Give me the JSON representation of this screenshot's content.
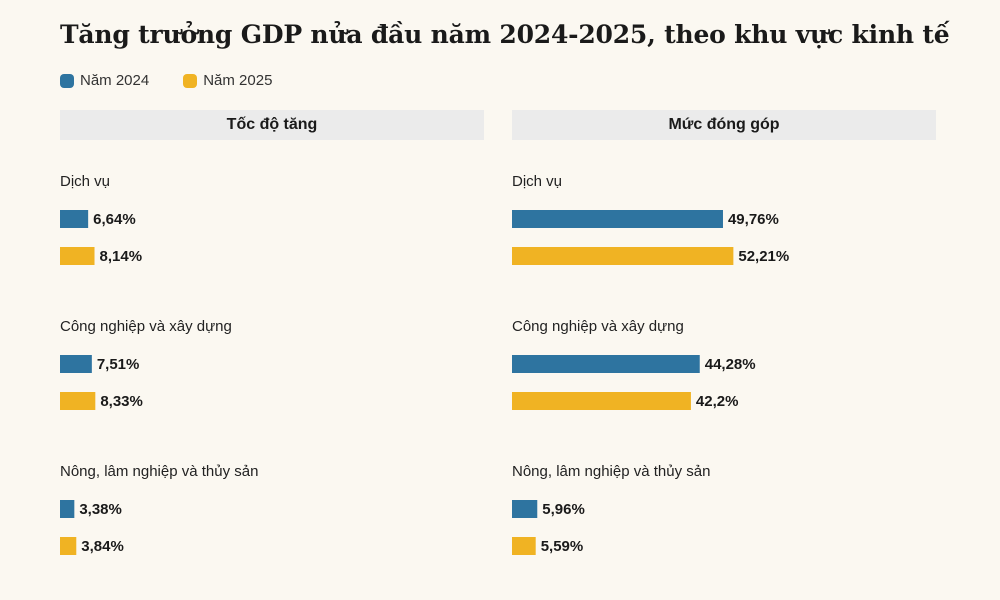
{
  "title": "Tăng trưởng GDP nửa đầu năm 2024-2025, theo khu vực kinh tế",
  "legend": [
    {
      "label": "Năm 2024",
      "color": "#2e74a0"
    },
    {
      "label": "Năm 2025",
      "color": "#f0b323"
    }
  ],
  "chart_data": [
    {
      "type": "bar",
      "orientation": "horizontal",
      "title": "Tốc độ tăng",
      "categories": [
        "Dịch vụ",
        "Công nghiệp và xây dựng",
        "Nông, lâm nghiệp và thủy sản"
      ],
      "series": [
        {
          "name": "Năm 2024",
          "values": [
            6.64,
            7.51,
            3.38
          ],
          "labels": [
            "6,64%",
            "7,51%",
            "3,38%"
          ]
        },
        {
          "name": "Năm 2025",
          "values": [
            8.14,
            8.33,
            3.84
          ],
          "labels": [
            "8,14%",
            "8,33%",
            "3,84%"
          ]
        }
      ],
      "xlim": [
        0,
        100
      ]
    },
    {
      "type": "bar",
      "orientation": "horizontal",
      "title": "Mức đóng góp",
      "categories": [
        "Dịch vụ",
        "Công nghiệp và xây dựng",
        "Nông, lâm nghiệp và thủy sản"
      ],
      "series": [
        {
          "name": "Năm 2024",
          "values": [
            49.76,
            44.28,
            5.96
          ],
          "labels": [
            "49,76%",
            "44,28%",
            "5,96%"
          ]
        },
        {
          "name": "Năm 2025",
          "values": [
            52.21,
            42.2,
            5.59
          ],
          "labels": [
            "52,21%",
            "42,2%",
            "5,59%"
          ]
        }
      ],
      "xlim": [
        0,
        100
      ]
    }
  ]
}
